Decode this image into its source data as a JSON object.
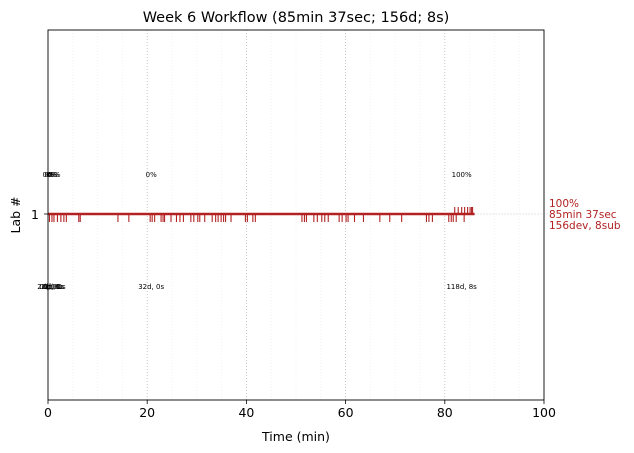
{
  "chart_data": {
    "type": "scatter",
    "title": "Week 6 Workflow (85min 37sec; 156d; 8s)",
    "xlabel": "Time (min)",
    "ylabel": "Lab #",
    "xlim": [
      0,
      100
    ],
    "x_ticks": [
      "0",
      "20",
      "40",
      "60",
      "80",
      "100"
    ],
    "y_ticks": [
      "1"
    ],
    "grid": "vertical dotted",
    "colors": {
      "main": "#b22222",
      "grid_major": "#bbbbbb",
      "grid_minor": "#eeeeee"
    },
    "event_ticks_d": [
      0.3,
      0.8,
      1.2,
      1.9,
      2.6,
      3.2,
      3.7,
      6.2,
      6.5,
      14.1,
      16.3,
      20.6,
      21.0,
      21.5,
      22.8,
      23.2,
      23.5,
      24.8,
      25.9,
      26.6,
      27.3,
      28.8,
      29.4,
      30.2,
      30.6,
      31.6,
      33.1,
      33.8,
      34.3,
      34.9,
      35.4,
      35.8,
      36.9,
      39.8,
      40.2,
      41.3,
      41.8,
      51.2,
      51.7,
      52.1,
      53.6,
      54.3,
      55.2,
      55.8,
      56.5,
      58.7,
      59.3,
      60.1,
      60.5,
      61.8,
      63.6,
      66.9,
      68.9,
      71.3,
      76.3,
      76.8,
      77.5,
      80.8,
      81.3,
      81.7,
      82.3,
      83.9
    ],
    "event_ticks_s": [
      82.0,
      82.7,
      83.4,
      84.0,
      84.6,
      85.1,
      85.4,
      85.6
    ],
    "annotations": [
      {
        "x": 0.0,
        "top": "0%",
        "bottom": "2d, 0s"
      },
      {
        "x": 0.4,
        "top": "0%",
        "bottom": "0d, 0s"
      },
      {
        "x": 0.8,
        "top": "0%",
        "bottom": "2d, 0s"
      },
      {
        "x": 1.1,
        "top": "0%",
        "bottom": "0d, 0s"
      },
      {
        "x": 1.4,
        "top": "6%",
        "bottom": "2d, 0s"
      },
      {
        "x": 20.8,
        "top": "0%",
        "bottom": "32d, 0s"
      },
      {
        "x": 83.4,
        "top": "100%",
        "bottom": "118d, 8s"
      }
    ],
    "end_label": {
      "line1": "100%",
      "line2": "85min 37sec",
      "line3": "156dev, 8sub"
    }
  }
}
